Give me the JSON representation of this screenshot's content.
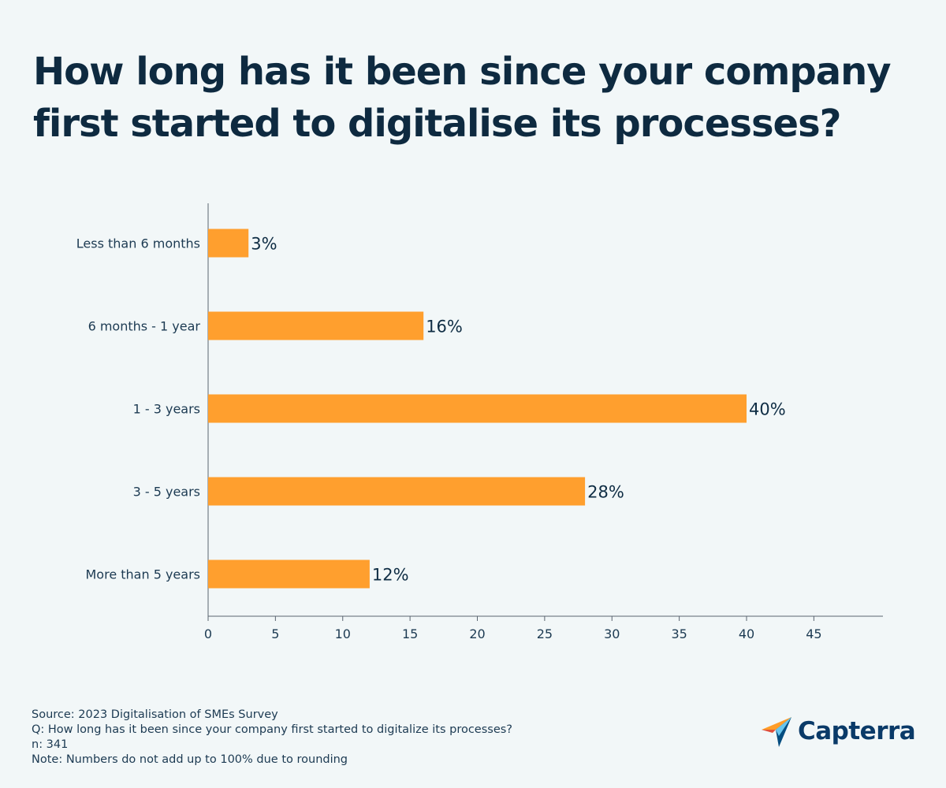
{
  "title_lines": [
    "How long has it been since your company",
    "first started to digitalise its processes?"
  ],
  "chart_data": {
    "type": "bar",
    "orientation": "horizontal",
    "categories": [
      "Less than 6 months",
      "6 months - 1 year",
      "1 - 3 years",
      "3 - 5 years",
      "More than 5 years"
    ],
    "values": [
      3,
      16,
      40,
      28,
      12
    ],
    "data_labels": [
      "3%",
      "16%",
      "40%",
      "28%",
      "12%"
    ],
    "x_ticks": [
      0,
      5,
      10,
      15,
      20,
      25,
      30,
      35,
      40,
      45
    ],
    "xlim": [
      0,
      50
    ],
    "xlabel": "",
    "ylabel": "",
    "grid": false,
    "bar_color": "#ff9f2e"
  },
  "footer": {
    "source": "Source: 2023 Digitalisation of SMEs Survey",
    "question": "Q: How long has it been since your company first started to digitalize its processes?",
    "n": "n: 341",
    "note": "Note: Numbers do not add up to 100% due to rounding"
  },
  "logo": {
    "text": "Capterra",
    "icon": "capterra-arrow-icon"
  }
}
